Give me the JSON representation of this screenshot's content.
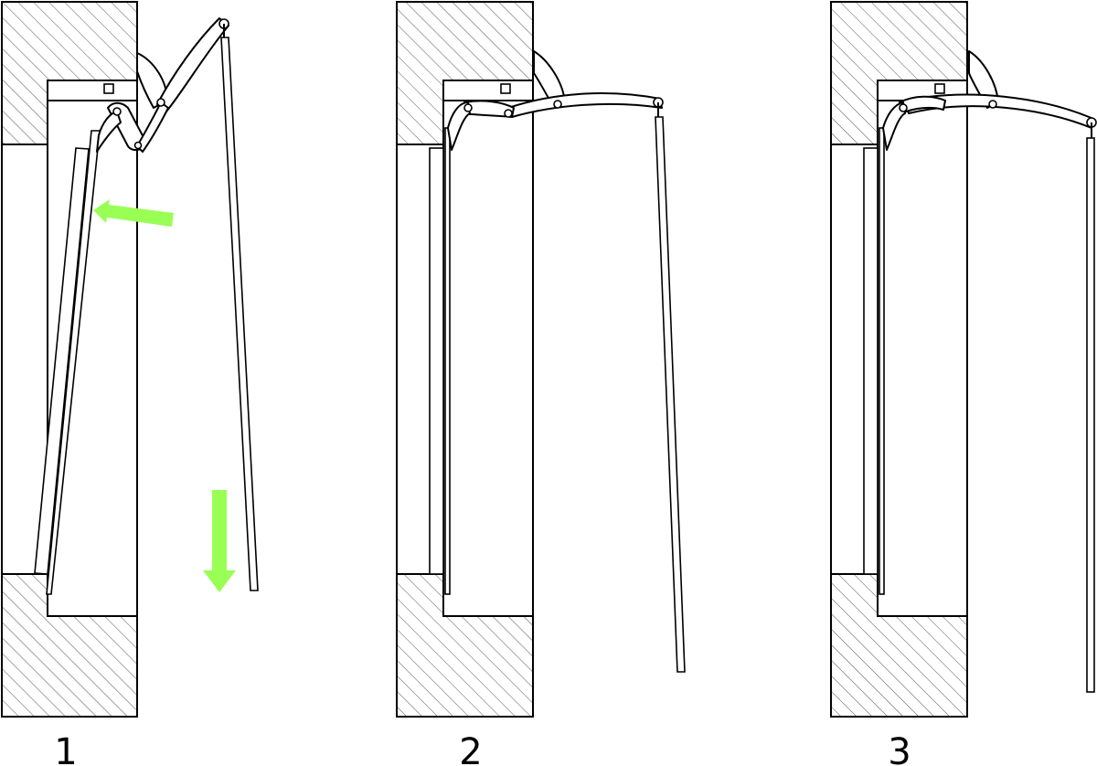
{
  "stages": [
    {
      "label": "1"
    },
    {
      "label": "2"
    },
    {
      "label": "3"
    }
  ],
  "colors": {
    "arrow": "#99ff55",
    "stroke": "#000000",
    "hatch": "#555555",
    "background": "#ffffff"
  }
}
